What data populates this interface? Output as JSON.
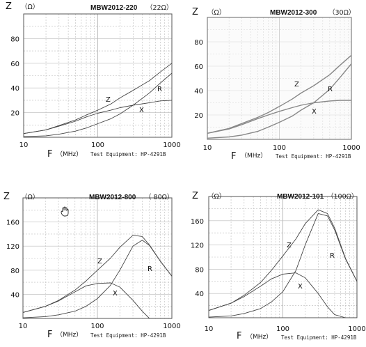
{
  "chart_data": [
    {
      "type": "line",
      "title": "MBW2012-220",
      "z_label": "Z",
      "z_unit": "（Ω）",
      "rated": "（22Ω）",
      "f_label": "F",
      "f_unit": "（MHz）",
      "equipment": "Test Equipment: HP-4291B",
      "xscale": "log",
      "xlim": [
        10,
        1000
      ],
      "ylim": [
        0,
        100
      ],
      "xticks": [
        "10",
        "100",
        "1000"
      ],
      "yticks": [
        "20",
        "40",
        "60",
        "80"
      ],
      "x": [
        10,
        20,
        30,
        50,
        70,
        100,
        150,
        200,
        300,
        500,
        700,
        1000
      ],
      "series": [
        {
          "name": "Z",
          "values": [
            3,
            6,
            9.5,
            14,
            18,
            22,
            27,
            32,
            38,
            46,
            53,
            60
          ]
        },
        {
          "name": "R",
          "values": [
            0.5,
            1.2,
            2.5,
            5,
            7.5,
            11,
            15,
            19,
            26,
            36,
            44,
            52
          ]
        },
        {
          "name": "X",
          "values": [
            3,
            6,
            9,
            13,
            16.5,
            19.5,
            22,
            24,
            26,
            28,
            29.5,
            30
          ]
        }
      ]
    },
    {
      "type": "line",
      "title": "MBW2012-300",
      "z_label": "Z",
      "z_unit": "（Ω）",
      "rated": "（30Ω）",
      "f_label": "F",
      "f_unit": "（MHz）",
      "equipment": "Test Equipment: HP-4291B",
      "xscale": "log",
      "xlim": [
        10,
        1000
      ],
      "ylim": [
        0,
        100
      ],
      "xticks": [
        "10",
        "100",
        "1000"
      ],
      "yticks": [
        "20",
        "40",
        "60",
        "80"
      ],
      "x": [
        10,
        20,
        30,
        50,
        70,
        100,
        150,
        200,
        300,
        500,
        700,
        1000
      ],
      "series": [
        {
          "name": "Z",
          "values": [
            5,
            9,
            13,
            18,
            22,
            27,
            33,
            38,
            44,
            53,
            61,
            69
          ]
        },
        {
          "name": "R",
          "values": [
            1,
            2,
            3.5,
            6.5,
            10,
            14,
            19,
            24,
            30,
            41,
            51,
            62
          ]
        },
        {
          "name": "X",
          "values": [
            5,
            8.5,
            12,
            17,
            20,
            23,
            26,
            28,
            30,
            31.5,
            32,
            32
          ]
        }
      ]
    },
    {
      "type": "line",
      "title": "MBW2012-800",
      "z_label": "Z",
      "z_unit": "（Ω）",
      "rated": "（ 80Ω）",
      "f_label": "F",
      "f_unit": "（MHz）",
      "equipment": "Test Equipment: HP-4291B",
      "xscale": "log",
      "xlim": [
        10,
        1000
      ],
      "ylim": [
        0,
        200
      ],
      "xticks": [
        "10",
        "100",
        "1000"
      ],
      "yticks": [
        "40",
        "80",
        "120",
        "160"
      ],
      "x": [
        10,
        20,
        30,
        50,
        70,
        100,
        150,
        200,
        300,
        400,
        500,
        700,
        1000
      ],
      "series": [
        {
          "name": "Z",
          "values": [
            10,
            20,
            30,
            47,
            62,
            80,
            100,
            118,
            138,
            136,
            122,
            95,
            70
          ]
        },
        {
          "name": "R",
          "values": [
            1,
            3,
            6,
            12,
            20,
            33,
            55,
            80,
            120,
            130,
            121,
            95,
            70
          ]
        },
        {
          "name": "X",
          "values": [
            10,
            20,
            29,
            44,
            54,
            58,
            59,
            52,
            30,
            12,
            0,
            0,
            0
          ]
        }
      ]
    },
    {
      "type": "line",
      "title": "MBW2012-101",
      "z_label": "Z",
      "z_unit": "（Ω）",
      "rated": "（100Ω）",
      "f_label": "F",
      "f_unit": "（MHz）",
      "equipment": "Test Equipment: HP-4291B",
      "xscale": "log",
      "xlim": [
        10,
        1000
      ],
      "ylim": [
        0,
        200
      ],
      "xticks": [
        "10",
        "100",
        "1000"
      ],
      "yticks": [
        "40",
        "80",
        "120",
        "160"
      ],
      "x": [
        10,
        20,
        30,
        50,
        70,
        100,
        150,
        200,
        300,
        400,
        500,
        700,
        1000
      ],
      "series": [
        {
          "name": "Z",
          "values": [
            12,
            24,
            37,
            58,
            78,
            102,
            130,
            155,
            178,
            172,
            148,
            98,
            60
          ]
        },
        {
          "name": "R",
          "values": [
            1,
            3,
            7,
            15,
            26,
            43,
            78,
            120,
            172,
            168,
            145,
            97,
            60
          ]
        },
        {
          "name": "X",
          "values": [
            12,
            24,
            35,
            52,
            64,
            72,
            74,
            66,
            40,
            18,
            5,
            0,
            0
          ]
        }
      ]
    }
  ]
}
